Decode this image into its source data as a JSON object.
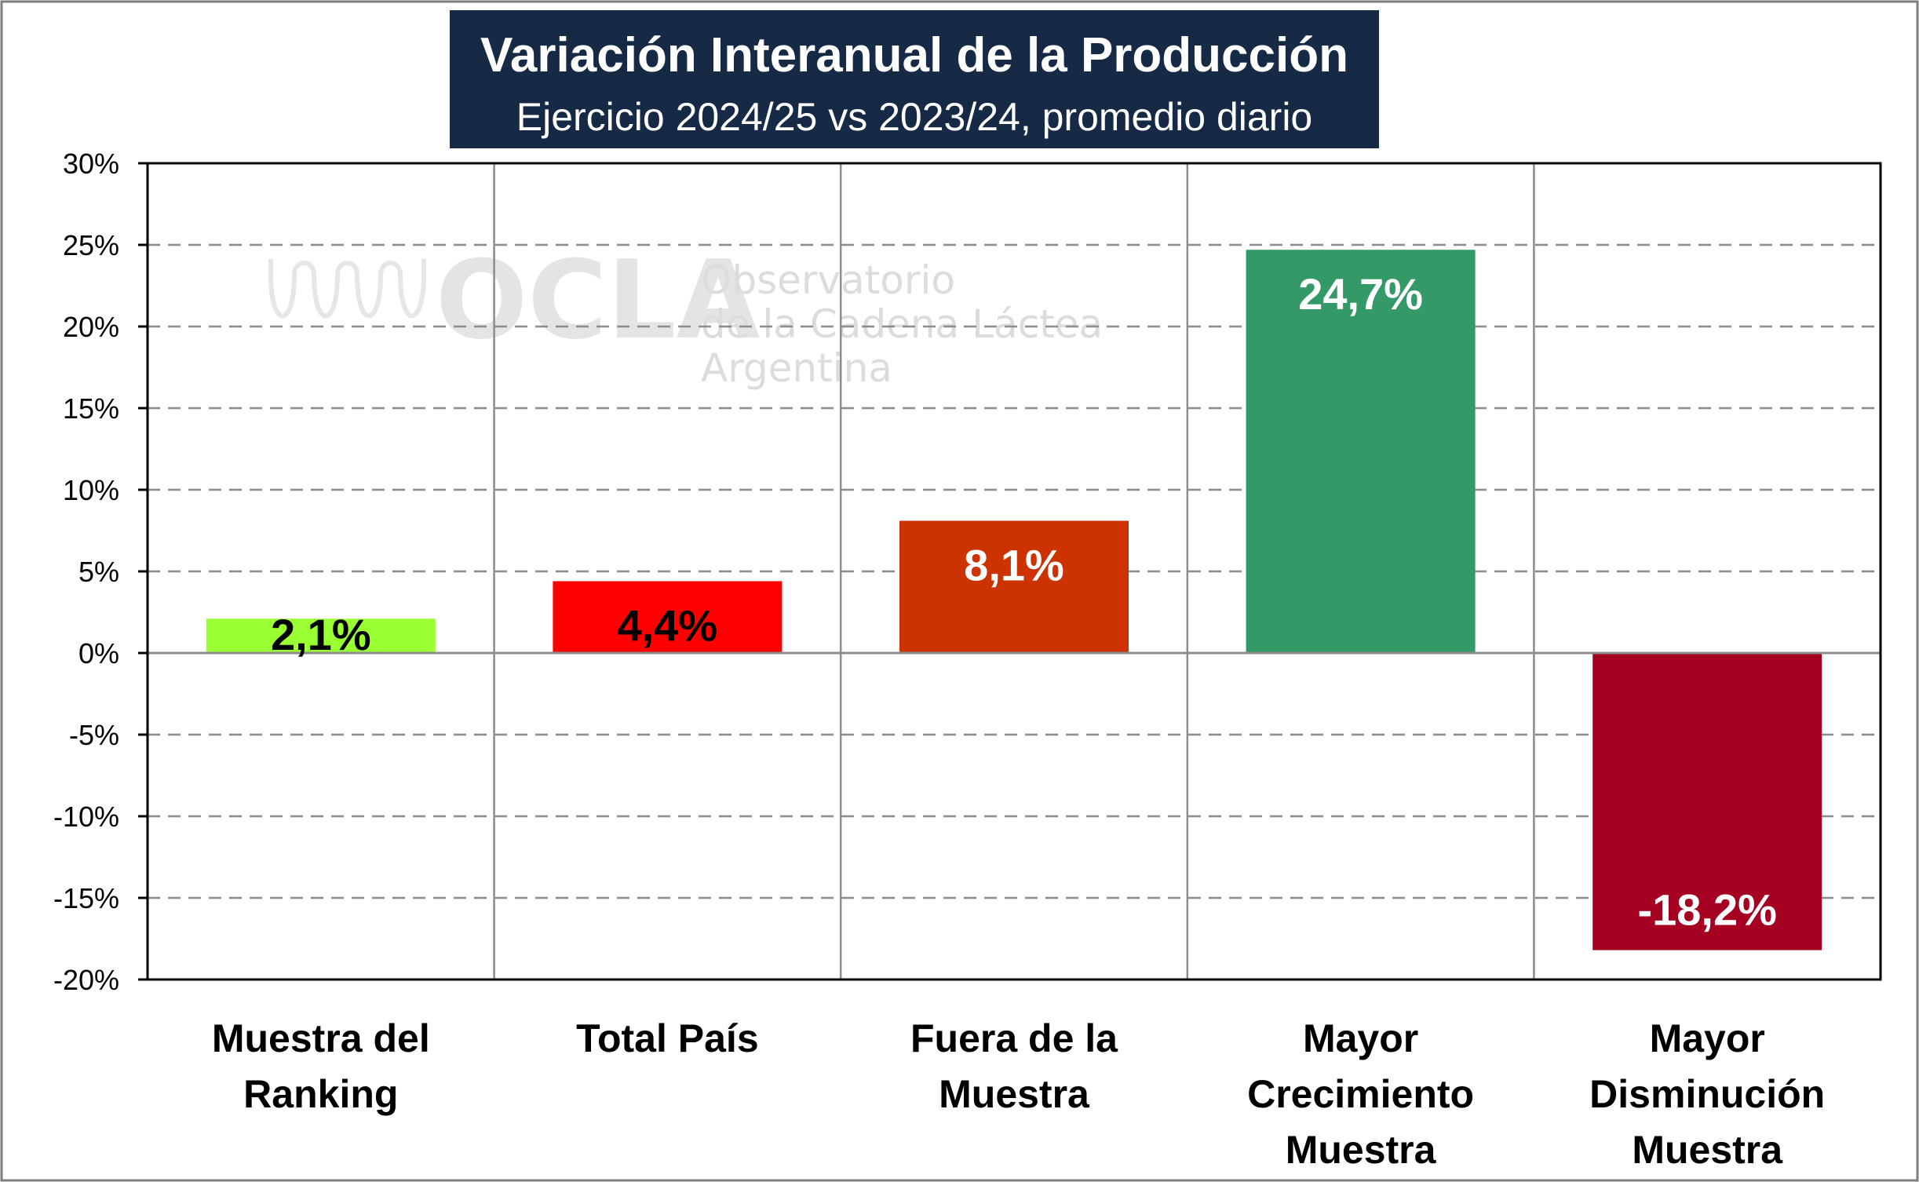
{
  "chart_data": {
    "type": "bar",
    "title": "Variación Interanual de la Producción",
    "subtitle": "Ejercicio 2024/25 vs 2023/24, promedio diario",
    "categories": [
      [
        "Muestra del",
        "Ranking"
      ],
      [
        "Total País"
      ],
      [
        "Fuera de la",
        "Muestra"
      ],
      [
        "Mayor",
        "Crecimiento",
        "Muestra"
      ],
      [
        "Mayor",
        "Disminución",
        "Muestra"
      ]
    ],
    "values": [
      2.1,
      4.4,
      8.1,
      24.7,
      -18.2
    ],
    "data_labels": [
      "2,1%",
      "4,4%",
      "8,1%",
      "24,7%",
      "-18,2%"
    ],
    "bar_colors": [
      "#99ff33",
      "#ff0000",
      "#cc3300",
      "#339966",
      "#a50021"
    ],
    "label_colors": [
      "#000000",
      "#000000",
      "#ffffff",
      "#ffffff",
      "#ffffff"
    ],
    "ylim": [
      -20,
      30
    ],
    "yticks": [
      30,
      25,
      20,
      15,
      10,
      5,
      0,
      -5,
      -10,
      -15,
      -20
    ],
    "ytick_labels": [
      "30%",
      "25%",
      "20%",
      "15%",
      "10%",
      "5%",
      "0%",
      "-5%",
      "-10%",
      "-15%",
      "-20%"
    ],
    "xlabel": "",
    "ylabel": "",
    "grid": true,
    "legend": "none"
  },
  "watermark": {
    "logo_text": "OCLA",
    "lines": [
      "Observatorio",
      "de la Cadena Láctea",
      "Argentina"
    ]
  },
  "colors": {
    "title_background": "#162a46",
    "title_text": "#ffffff"
  }
}
